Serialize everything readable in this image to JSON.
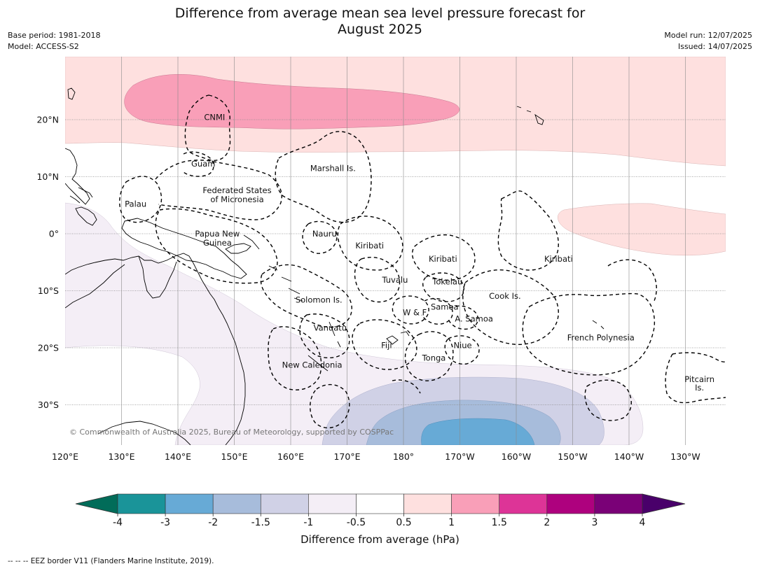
{
  "title_line1": "Difference from average mean sea level pressure forecast for",
  "title_line2": "August 2025",
  "base_period": "Base period: 1981-2018",
  "model": "Model: ACCESS-S2",
  "model_run": "Model run: 12/07/2025",
  "issued": "Issued: 14/07/2025",
  "copyright": "© Commonwealth of Australia 2025, Bureau of Meteorology, supported by COSPPac",
  "lon_labels": [
    {
      "lon": 120,
      "text": "120°E"
    },
    {
      "lon": 130,
      "text": "130°E"
    },
    {
      "lon": 140,
      "text": "140°E"
    },
    {
      "lon": 150,
      "text": "150°E"
    },
    {
      "lon": 160,
      "text": "160°E"
    },
    {
      "lon": 170,
      "text": "170°E"
    },
    {
      "lon": 180,
      "text": "180°"
    },
    {
      "lon": 190,
      "text": "170°W"
    },
    {
      "lon": 200,
      "text": "160°W"
    },
    {
      "lon": 210,
      "text": "150°W"
    },
    {
      "lon": 220,
      "text": "140°W"
    },
    {
      "lon": 230,
      "text": "130°W"
    }
  ],
  "lat_labels": [
    {
      "lat": 20,
      "text": "20°N"
    },
    {
      "lat": 10,
      "text": "10°N"
    },
    {
      "lat": 0,
      "text": "0°"
    },
    {
      "lat": -10,
      "text": "10°S"
    },
    {
      "lat": -20,
      "text": "20°S"
    },
    {
      "lat": -30,
      "text": "30°S"
    }
  ],
  "places": [
    {
      "text": "CNMI",
      "lon": 146.5,
      "lat": 20.4
    },
    {
      "text": "Guam",
      "lon": 144.5,
      "lat": 12.3
    },
    {
      "text": "Marshall Is.",
      "lon": 167.5,
      "lat": 11.5
    },
    {
      "text": "Federated States",
      "lon": 150.5,
      "lat": 7.6
    },
    {
      "text": "of Micronesia",
      "lon": 150.5,
      "lat": 6.0
    },
    {
      "text": "Palau",
      "lon": 132.5,
      "lat": 5.2
    },
    {
      "text": "Papua New",
      "lon": 147.0,
      "lat": 0.0
    },
    {
      "text": "Guinea",
      "lon": 147.0,
      "lat": -1.6
    },
    {
      "text": "Nauru",
      "lon": 166.0,
      "lat": 0.0
    },
    {
      "text": "Kiribati",
      "lon": 174.0,
      "lat": -2.1
    },
    {
      "text": "Kiribati",
      "lon": 187.0,
      "lat": -4.4
    },
    {
      "text": "Kiribati",
      "lon": 207.5,
      "lat": -4.4
    },
    {
      "text": "Tuvalu",
      "lon": 178.5,
      "lat": -8.1
    },
    {
      "text": "Tokelau",
      "lon": 187.8,
      "lat": -8.4
    },
    {
      "text": "Solomon Is.",
      "lon": 165.0,
      "lat": -11.6
    },
    {
      "text": "Cook Is.",
      "lon": 198.0,
      "lat": -10.9
    },
    {
      "text": "Samoa",
      "lon": 187.3,
      "lat": -12.8
    },
    {
      "text": "W & F",
      "lon": 182.0,
      "lat": -13.8
    },
    {
      "text": "A. Samoa",
      "lon": 192.5,
      "lat": -14.9
    },
    {
      "text": "Vanuatu",
      "lon": 167.0,
      "lat": -16.5
    },
    {
      "text": "French Polynesia",
      "lon": 215.0,
      "lat": -18.2
    },
    {
      "text": "Fiji",
      "lon": 177.0,
      "lat": -19.6
    },
    {
      "text": "Niue",
      "lon": 190.5,
      "lat": -19.6
    },
    {
      "text": "Tonga",
      "lon": 185.4,
      "lat": -21.8
    },
    {
      "text": "New Caledonia",
      "lon": 163.8,
      "lat": -23.0
    },
    {
      "text": "Pitcairn",
      "lon": 232.5,
      "lat": -25.5
    },
    {
      "text": "Is.",
      "lon": 232.5,
      "lat": -27.0
    }
  ],
  "colorbar": {
    "label": "Difference from average (hPa)",
    "ticks": [
      "-4",
      "-3",
      "-2",
      "-1.5",
      "-1",
      "-0.5",
      "0.5",
      "1",
      "1.5",
      "2",
      "3",
      "4"
    ],
    "colors": [
      "#1a9499",
      "#67aad6",
      "#a7bcdb",
      "#d0d1e6",
      "#f4eef6",
      "#ffffff",
      "#fee0df",
      "#f99fb8",
      "#dd3497",
      "#ae017e",
      "#7a0177"
    ],
    "under_color": "#016c59",
    "over_color": "#49006a"
  },
  "footnote": "-- -- -- EEZ border V11 (Flanders Marine Institute, 2019)."
}
